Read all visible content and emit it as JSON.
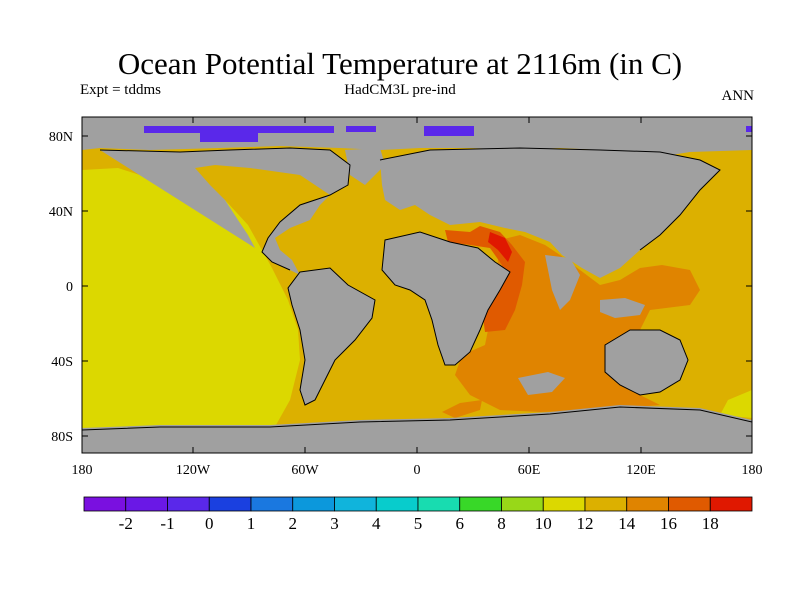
{
  "title": "Ocean Potential Temperature at 2116m (in C)",
  "subtitle_left": "Expt = tddms",
  "subtitle_center": "HadCM3L pre-ind",
  "subtitle_right": "ANN",
  "map": {
    "lat_labels": [
      "80N",
      "40N",
      "0",
      "40S",
      "80S"
    ],
    "lon_labels": [
      "180",
      "120W",
      "60W",
      "0",
      "60E",
      "120E",
      "180"
    ],
    "land_color": "#a0a0a0"
  },
  "colorbar": {
    "colors": [
      "#7a10e0",
      "#6a18e6",
      "#5a28ea",
      "#1a40e0",
      "#1a78e0",
      "#0c98dc",
      "#10b4dc",
      "#08cccc",
      "#18dcb0",
      "#38d828",
      "#98d818",
      "#dcd800",
      "#dcb000",
      "#e08400",
      "#e05a00",
      "#e01800"
    ],
    "labels": [
      "-2",
      "-1",
      "0",
      "1",
      "2",
      "3",
      "4",
      "5",
      "6",
      "8",
      "10",
      "12",
      "14",
      "16",
      "18"
    ]
  }
}
